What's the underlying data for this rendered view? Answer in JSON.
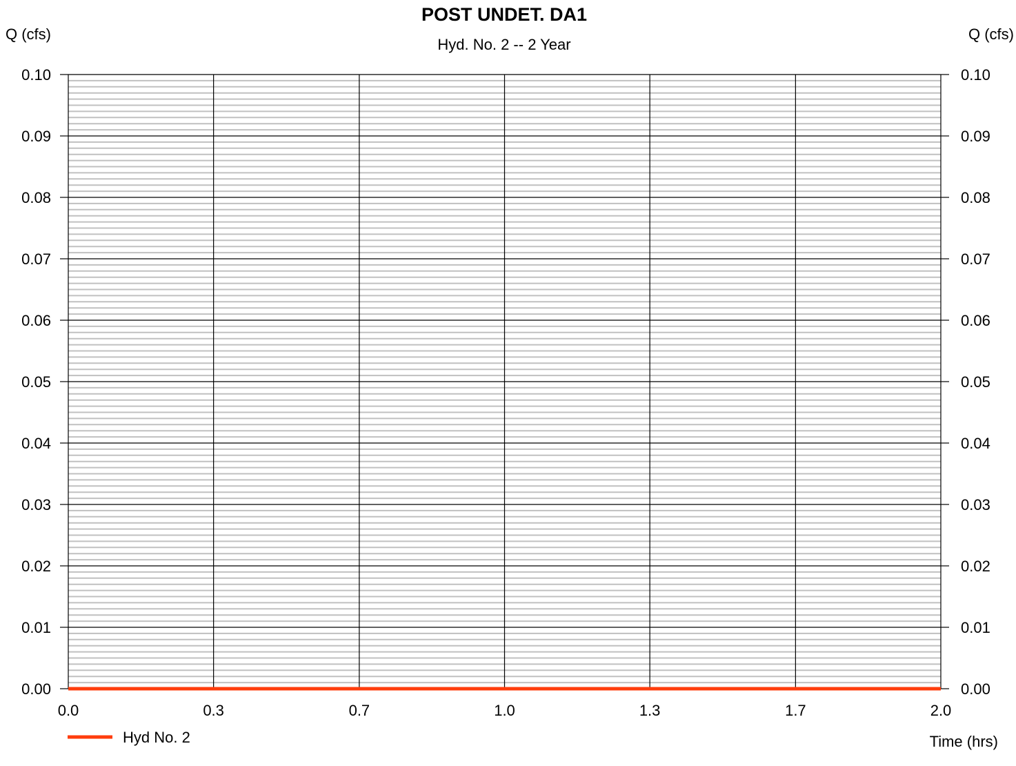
{
  "chart_data": {
    "type": "line",
    "title": "POST UNDET. DA1",
    "subtitle": "Hyd. No. 2 -- 2 Year",
    "ylabel_left": "Q (cfs)",
    "ylabel_right": "Q (cfs)",
    "xlabel": "Time (hrs)",
    "xlim": [
      0,
      2
    ],
    "ylim": [
      0,
      0.1
    ],
    "x_ticks": [
      0,
      0.333,
      0.667,
      1.0,
      1.333,
      1.667,
      2.0
    ],
    "x_tick_labels": [
      "0.0",
      "0.3",
      "0.7",
      "1.0",
      "1.3",
      "1.7",
      "2.0"
    ],
    "y_ticks": [
      0,
      0.01,
      0.02,
      0.03,
      0.04,
      0.05,
      0.06,
      0.07,
      0.08,
      0.09,
      0.1
    ],
    "y_tick_labels": [
      "0.00",
      "0.01",
      "0.02",
      "0.03",
      "0.04",
      "0.05",
      "0.06",
      "0.07",
      "0.08",
      "0.09",
      "0.10"
    ],
    "minor_gridlines_per_major": 9,
    "grid": true,
    "series": [
      {
        "name": "Hyd No. 2",
        "color": "#ff3d0d",
        "x": [
          0,
          2
        ],
        "y": [
          0,
          0
        ]
      }
    ],
    "legend": {
      "position": "bottom-left"
    },
    "colors": {
      "major_grid": "#000000",
      "minor_grid": "#c0c0c0"
    }
  }
}
